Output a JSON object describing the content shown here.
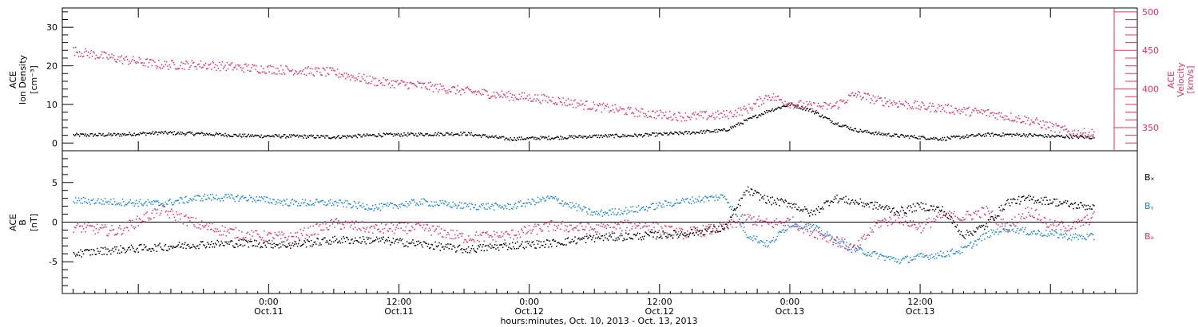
{
  "colors": {
    "density": "#000000",
    "velocity": "#e8305f",
    "bx": "#000000",
    "by": "#1a86e0",
    "bz": "#e8305f",
    "axis": "#000000"
  },
  "chart_data": [
    {
      "type": "scatter",
      "panel": "top",
      "ylabel_lines": [
        "ACE",
        "Ion Density"
      ],
      "ylabel_unit": "[cm⁻³]",
      "y_right_label_lines": [
        "ACE",
        "Velocity"
      ],
      "y_right_unit": "[km/s]",
      "xlim_hours": [
        -19,
        80
      ],
      "ylim": [
        -2,
        35
      ],
      "y_ticks": [
        0,
        10,
        20,
        30
      ],
      "y_ticks_text": [
        "0",
        "10",
        "20",
        "30"
      ],
      "y_right_lim": [
        320,
        505
      ],
      "y_right_ticks": [
        350,
        400,
        450,
        500
      ],
      "y_right_ticks_text": [
        "350",
        "400",
        "450",
        "500"
      ],
      "series": [
        {
          "name": "",
          "axis": "left",
          "color": "#000000",
          "x": [
            -18,
            -14,
            -10,
            -6,
            -2,
            2,
            6,
            10,
            14,
            18,
            22,
            26,
            30,
            34,
            38,
            42,
            44,
            46,
            48,
            50,
            52,
            54,
            56,
            58,
            60,
            62,
            64,
            66,
            68,
            70,
            72,
            74,
            76
          ],
          "y": [
            2.2,
            2.3,
            2.8,
            2.5,
            2.0,
            1.9,
            1.7,
            2.2,
            2.4,
            2.6,
            1.2,
            1.5,
            1.9,
            2.1,
            2.7,
            3.4,
            6.0,
            8.5,
            10.2,
            8.5,
            5.5,
            3.5,
            2.6,
            2.0,
            1.6,
            1.2,
            1.8,
            2.3,
            2.3,
            2.2,
            1.9,
            1.8,
            1.6
          ]
        },
        {
          "name": "",
          "axis": "right",
          "color": "#e8305f",
          "x": [
            -18,
            -14,
            -10,
            -6,
            -2,
            2,
            6,
            10,
            14,
            18,
            22,
            26,
            30,
            34,
            38,
            42,
            44,
            46,
            48,
            50,
            52,
            54,
            56,
            58,
            60,
            62,
            64,
            66,
            68,
            70,
            72,
            74,
            76
          ],
          "y": [
            450,
            440,
            432,
            432,
            428,
            425,
            422,
            410,
            405,
            398,
            392,
            387,
            378,
            370,
            365,
            367,
            374,
            392,
            382,
            378,
            378,
            394,
            386,
            382,
            378,
            376,
            372,
            370,
            365,
            360,
            352,
            344,
            343
          ]
        }
      ]
    },
    {
      "type": "scatter",
      "panel": "bottom",
      "ylabel_lines": [
        "ACE",
        "B"
      ],
      "ylabel_unit": "[nT]",
      "xlim_hours": [
        -19,
        80
      ],
      "ylim": [
        -9,
        9
      ],
      "y_ticks": [
        -5,
        0,
        5
      ],
      "y_ticks_text": [
        "-5",
        "0",
        "5"
      ],
      "zero_line": true,
      "series": [
        {
          "name": "Bₓ",
          "color": "#000000",
          "x": [
            -18,
            -14,
            -10,
            -6,
            -2,
            2,
            6,
            10,
            14,
            18,
            22,
            26,
            30,
            34,
            38,
            42,
            44,
            46,
            48,
            50,
            52,
            54,
            56,
            58,
            60,
            62,
            64,
            66,
            68,
            70,
            72,
            74,
            76
          ],
          "y": [
            -3.9,
            -3.4,
            -3.1,
            -2.7,
            -2.6,
            -2.8,
            -2.2,
            -2.2,
            -2.7,
            -3.4,
            -2.9,
            -2.6,
            -1.9,
            -1.7,
            -1.4,
            -0.7,
            4.1,
            2.8,
            2.4,
            1.1,
            3.1,
            2.6,
            2.1,
            1.4,
            2.1,
            1.6,
            -1.6,
            -0.4,
            2.6,
            3.0,
            2.7,
            2.2,
            2.0
          ]
        },
        {
          "name": "Bᵧ",
          "color": "#1a86e0",
          "x": [
            -18,
            -14,
            -10,
            -6,
            -2,
            2,
            6,
            10,
            14,
            18,
            22,
            26,
            30,
            34,
            38,
            42,
            44,
            46,
            48,
            50,
            52,
            54,
            56,
            58,
            60,
            62,
            64,
            66,
            68,
            70,
            72,
            74,
            76
          ],
          "y": [
            2.8,
            2.6,
            2.4,
            3.2,
            3.1,
            2.5,
            2.5,
            1.9,
            2.6,
            2.1,
            2.0,
            3.1,
            1.1,
            1.7,
            2.7,
            3.3,
            -1.5,
            -2.8,
            -0.1,
            -0.5,
            -2.1,
            -3.4,
            -4.1,
            -4.8,
            -4.3,
            -4.0,
            -3.4,
            -1.6,
            -0.6,
            -1.2,
            -1.4,
            -1.8,
            -1.8
          ]
        },
        {
          "name": "Bₔ",
          "color": "#e8305f",
          "x": [
            -18,
            -14,
            -10,
            -6,
            -2,
            2,
            6,
            10,
            14,
            18,
            22,
            26,
            30,
            34,
            38,
            42,
            44,
            46,
            48,
            50,
            52,
            54,
            56,
            58,
            60,
            62,
            64,
            66,
            68,
            70,
            72,
            74,
            76
          ],
          "y": [
            -0.5,
            -1.1,
            1.6,
            -0.5,
            -1.6,
            -1.9,
            -0.1,
            -0.8,
            -0.6,
            -1.9,
            -1.6,
            -0.4,
            -0.8,
            -0.2,
            -1.4,
            -0.6,
            0.6,
            -0.2,
            0.2,
            -1.1,
            -2.1,
            -3.4,
            -0.1,
            0.6,
            -0.6,
            0.9,
            0.7,
            1.5,
            -0.6,
            1.6,
            -0.4,
            -0.5,
            0.7
          ]
        }
      ]
    }
  ],
  "x_axis": {
    "ticks_hours": [
      0,
      12,
      24,
      36,
      48,
      60
    ],
    "tick_time_labels": [
      "0:00",
      "12:00",
      "0:00",
      "12:00",
      "0:00",
      "12:00"
    ],
    "tick_date_labels": [
      "Oct.11",
      "Oct.11",
      "Oct.12",
      "Oct.12",
      "Oct.13",
      "Oct.13"
    ],
    "title": "hours:minutes, Oct. 10, 2013 - Oct. 13, 2013"
  },
  "legend": {
    "bx": "Bₓ",
    "by": "Bᵧ",
    "bz": "Bₔ"
  }
}
